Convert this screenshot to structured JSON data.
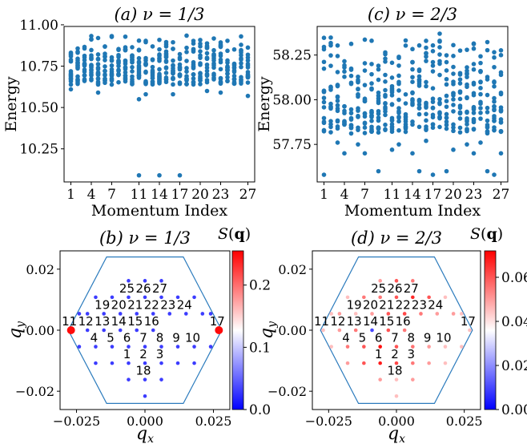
{
  "figure": {
    "colorbar_label": "S(q)"
  },
  "chart_data": [
    {
      "id": "a",
      "type": "scatter",
      "title": "(a) ν = 1/3",
      "xlabel": "Momentum Index",
      "ylabel": "Energy",
      "xlim": [
        0,
        28
      ],
      "ylim": [
        10.05,
        10.99
      ],
      "xticks": [
        1,
        4,
        7,
        11,
        14,
        17,
        20,
        23,
        27
      ],
      "yticks": [
        10.25,
        10.5,
        10.75,
        11.0
      ],
      "ytick_labels": [
        "10.25",
        "10.50",
        "10.75",
        "11.00"
      ],
      "marker_color": "#1f77b4",
      "ground_states": [
        [
          11,
          10.09
        ],
        [
          14,
          10.09
        ],
        [
          17,
          10.09
        ]
      ],
      "band_range": [
        10.55,
        10.95
      ],
      "low_points_shown": [
        [
          1,
          10.61
        ],
        [
          5,
          10.59
        ],
        [
          11,
          10.55
        ],
        [
          12,
          10.58
        ],
        [
          16,
          10.58
        ],
        [
          21,
          10.6
        ],
        [
          23,
          10.59
        ],
        [
          27,
          10.57
        ]
      ]
    },
    {
      "id": "c",
      "type": "scatter",
      "title": "(c) ν = 2/3",
      "xlabel": "Momentum Index",
      "ylabel": "Energy",
      "xlim": [
        0,
        28
      ],
      "ylim": [
        57.54,
        58.41
      ],
      "xticks": [
        1,
        4,
        7,
        11,
        14,
        17,
        20,
        23,
        27
      ],
      "yticks": [
        57.75,
        58.0,
        58.25
      ],
      "ytick_labels": [
        "57.75",
        "58.00",
        "58.25"
      ],
      "marker_color": "#1f77b4",
      "ground_states": [
        [
          1,
          57.58
        ],
        [
          9,
          57.6
        ],
        [
          15,
          57.6
        ],
        [
          17,
          57.58
        ],
        [
          19,
          57.6
        ],
        [
          25,
          57.6
        ],
        [
          26,
          57.58
        ]
      ],
      "band_range": [
        57.65,
        58.38
      ],
      "low_points_shown": [
        [
          4,
          57.7
        ],
        [
          7,
          57.7
        ],
        [
          11,
          57.72
        ],
        [
          14,
          57.7
        ],
        [
          20,
          57.72
        ],
        [
          23,
          57.7
        ],
        [
          27,
          57.7
        ],
        [
          3,
          57.76
        ],
        [
          6,
          57.75
        ],
        [
          12,
          57.75
        ],
        [
          16,
          57.77
        ],
        [
          22,
          57.75
        ],
        [
          24,
          57.76
        ]
      ]
    },
    {
      "id": "b",
      "type": "scatter",
      "title": "(b) ν = 1/3",
      "xlabel": "q_x",
      "ylabel": "q_y",
      "xlim": [
        -0.031,
        0.031
      ],
      "ylim": [
        -0.026,
        0.026
      ],
      "xticks": [
        -0.025,
        0.0,
        0.025
      ],
      "xtick_labels": [
        "−0.025",
        "0.000",
        "0.025"
      ],
      "yticks": [
        -0.02,
        0.0,
        0.02
      ],
      "ytick_labels": [
        "−0.02",
        "0.00",
        "0.02"
      ],
      "colorbar": {
        "min": 0.0,
        "max": 0.255,
        "ticks": [
          0.0,
          0.1,
          0.2
        ],
        "tick_labels": [
          "0.0",
          "0.1",
          "0.2"
        ],
        "label": "S(q)"
      },
      "points": [
        {
          "label": "1",
          "qx": -0.006,
          "qy": -0.0108,
          "S": 0.03
        },
        {
          "label": "2",
          "qx": 0.0,
          "qy": -0.0108,
          "S": 0.03
        },
        {
          "label": "3",
          "qx": 0.006,
          "qy": -0.0108,
          "S": 0.03
        },
        {
          "label": "4",
          "qx": -0.018,
          "qy": -0.0054,
          "S": 0.03
        },
        {
          "label": "5",
          "qx": -0.012,
          "qy": -0.0054,
          "S": 0.03
        },
        {
          "label": "6",
          "qx": -0.006,
          "qy": -0.0054,
          "S": 0.03
        },
        {
          "label": "7",
          "qx": 0.0,
          "qy": -0.0054,
          "S": 0.03
        },
        {
          "label": "8",
          "qx": 0.006,
          "qy": -0.0054,
          "S": 0.03
        },
        {
          "label": "9",
          "qx": 0.012,
          "qy": -0.0054,
          "S": 0.03
        },
        {
          "label": "10",
          "qx": 0.018,
          "qy": -0.0054,
          "S": 0.03
        },
        {
          "label": "11",
          "qx": -0.027,
          "qy": 0.0,
          "S": 0.25
        },
        {
          "label": "12",
          "qx": -0.021,
          "qy": 0.0,
          "S": 0.03
        },
        {
          "label": "13",
          "qx": -0.015,
          "qy": 0.0,
          "S": 0.03
        },
        {
          "label": "14",
          "qx": -0.009,
          "qy": 0.0,
          "S": 0.03
        },
        {
          "label": "15",
          "qx": -0.003,
          "qy": 0.0,
          "S": 0.03
        },
        {
          "label": "16",
          "qx": 0.003,
          "qy": 0.0,
          "S": 0.03
        },
        {
          "label": "17",
          "qx": 0.027,
          "qy": 0.0,
          "S": 0.25
        },
        {
          "label": "18",
          "qx": 0.0,
          "qy": -0.0162,
          "S": 0.03
        },
        {
          "label": "19",
          "qx": -0.015,
          "qy": 0.0054,
          "S": 0.03
        },
        {
          "label": "20",
          "qx": -0.009,
          "qy": 0.0054,
          "S": 0.03
        },
        {
          "label": "21",
          "qx": -0.003,
          "qy": 0.0054,
          "S": 0.03
        },
        {
          "label": "22",
          "qx": 0.003,
          "qy": 0.0054,
          "S": 0.03
        },
        {
          "label": "23",
          "qx": 0.009,
          "qy": 0.0054,
          "S": 0.03
        },
        {
          "label": "24",
          "qx": 0.015,
          "qy": 0.0054,
          "S": 0.03
        },
        {
          "label": "25",
          "qx": -0.006,
          "qy": 0.0108,
          "S": 0.03
        },
        {
          "label": "26",
          "qx": 0.0,
          "qy": 0.0108,
          "S": 0.03
        },
        {
          "label": "27",
          "qx": 0.006,
          "qy": 0.0108,
          "S": 0.03
        }
      ],
      "extra_points": [
        {
          "qx": -0.021,
          "qy": 0.0054,
          "S": 0.03
        },
        {
          "qx": 0.021,
          "qy": 0.0054,
          "S": 0.03
        },
        {
          "qx": -0.012,
          "qy": 0.0108,
          "S": 0.03
        },
        {
          "qx": 0.012,
          "qy": 0.0108,
          "S": 0.03
        },
        {
          "qx": 0.0,
          "qy": 0.0162,
          "S": 0.03
        },
        {
          "qx": -0.006,
          "qy": 0.0162,
          "S": 0.03
        },
        {
          "qx": 0.006,
          "qy": 0.0162,
          "S": 0.03
        },
        {
          "qx": -0.018,
          "qy": 0.0108,
          "S": 0.03
        },
        {
          "qx": 0.018,
          "qy": 0.0108,
          "S": 0.03
        },
        {
          "qx": -0.024,
          "qy": 0.0054,
          "S": 0.03
        },
        {
          "qx": 0.024,
          "qy": 0.0054,
          "S": 0.03
        },
        {
          "qx": -0.024,
          "qy": -0.0054,
          "S": 0.03
        },
        {
          "qx": 0.024,
          "qy": -0.0054,
          "S": 0.03
        },
        {
          "qx": -0.012,
          "qy": -0.0108,
          "S": 0.03
        },
        {
          "qx": 0.012,
          "qy": -0.0108,
          "S": 0.03
        },
        {
          "qx": -0.018,
          "qy": -0.0108,
          "S": 0.03
        },
        {
          "qx": 0.018,
          "qy": -0.0108,
          "S": 0.03
        },
        {
          "qx": -0.006,
          "qy": -0.0162,
          "S": 0.03
        },
        {
          "qx": 0.006,
          "qy": -0.0162,
          "S": 0.03
        },
        {
          "qx": 0.0,
          "qy": -0.0216,
          "S": 0.03
        }
      ],
      "hexagon": [
        [
          -0.014,
          0.024
        ],
        [
          0.014,
          0.024
        ],
        [
          0.028,
          0.0
        ],
        [
          0.014,
          -0.024
        ],
        [
          -0.014,
          -0.024
        ],
        [
          -0.028,
          0.0
        ]
      ]
    },
    {
      "id": "d",
      "type": "scatter",
      "title": "(d) ν = 2/3",
      "xlabel": "q_x",
      "ylabel": "q_y",
      "xlim": [
        -0.031,
        0.031
      ],
      "ylim": [
        -0.026,
        0.026
      ],
      "xticks": [
        -0.025,
        0.0,
        0.025
      ],
      "xtick_labels": [
        "−0.025",
        "0.000",
        "0.025"
      ],
      "yticks": [
        -0.02,
        0.0,
        0.02
      ],
      "ytick_labels": [
        "−0.02",
        "0.00",
        "0.02"
      ],
      "colorbar": {
        "min": 0.0,
        "max": 0.072,
        "ticks": [
          0.0,
          0.02,
          0.04,
          0.06
        ],
        "tick_labels": [
          "0.00",
          "0.02",
          "0.04",
          "0.06"
        ],
        "label": "S(q)"
      },
      "points": [
        {
          "label": "1",
          "qx": -0.006,
          "qy": -0.0108,
          "S": 0.068
        },
        {
          "label": "2",
          "qx": 0.0,
          "qy": -0.0108,
          "S": 0.062
        },
        {
          "label": "3",
          "qx": 0.006,
          "qy": -0.0108,
          "S": 0.055
        },
        {
          "label": "4",
          "qx": -0.018,
          "qy": -0.0054,
          "S": 0.055
        },
        {
          "label": "5",
          "qx": -0.012,
          "qy": -0.0054,
          "S": 0.06
        },
        {
          "label": "6",
          "qx": -0.006,
          "qy": -0.0054,
          "S": 0.07
        },
        {
          "label": "7",
          "qx": 0.0,
          "qy": -0.0054,
          "S": 0.06
        },
        {
          "label": "8",
          "qx": 0.006,
          "qy": -0.0054,
          "S": 0.056
        },
        {
          "label": "9",
          "qx": 0.012,
          "qy": -0.0054,
          "S": 0.05
        },
        {
          "label": "10",
          "qx": 0.018,
          "qy": -0.0054,
          "S": 0.045
        },
        {
          "label": "11",
          "qx": -0.027,
          "qy": 0.0,
          "S": 0.045
        },
        {
          "label": "12",
          "qx": -0.021,
          "qy": 0.0,
          "S": 0.05
        },
        {
          "label": "13",
          "qx": -0.015,
          "qy": 0.0,
          "S": 0.055
        },
        {
          "label": "14",
          "qx": -0.009,
          "qy": 0.0,
          "S": 0.01
        },
        {
          "label": "15",
          "qx": -0.003,
          "qy": 0.0,
          "S": 0.06
        },
        {
          "label": "16",
          "qx": 0.003,
          "qy": 0.0,
          "S": 0.055
        },
        {
          "label": "17",
          "qx": 0.027,
          "qy": 0.0,
          "S": 0.045
        },
        {
          "label": "18",
          "qx": 0.0,
          "qy": -0.0162,
          "S": 0.045
        },
        {
          "label": "19",
          "qx": -0.015,
          "qy": 0.0054,
          "S": 0.045
        },
        {
          "label": "20",
          "qx": -0.009,
          "qy": 0.0054,
          "S": 0.05
        },
        {
          "label": "21",
          "qx": -0.003,
          "qy": 0.0054,
          "S": 0.06
        },
        {
          "label": "22",
          "qx": 0.003,
          "qy": 0.0054,
          "S": 0.062
        },
        {
          "label": "23",
          "qx": 0.009,
          "qy": 0.0054,
          "S": 0.055
        },
        {
          "label": "24",
          "qx": 0.015,
          "qy": 0.0054,
          "S": 0.05
        },
        {
          "label": "25",
          "qx": -0.006,
          "qy": 0.0108,
          "S": 0.055
        },
        {
          "label": "26",
          "qx": 0.0,
          "qy": 0.0108,
          "S": 0.06
        },
        {
          "label": "27",
          "qx": 0.006,
          "qy": 0.0108,
          "S": 0.066
        }
      ],
      "extra_points": [
        {
          "qx": -0.021,
          "qy": 0.0054,
          "S": 0.05
        },
        {
          "qx": 0.021,
          "qy": 0.0054,
          "S": 0.05
        },
        {
          "qx": -0.012,
          "qy": 0.0108,
          "S": 0.055
        },
        {
          "qx": 0.012,
          "qy": 0.0108,
          "S": 0.06
        },
        {
          "qx": 0.0,
          "qy": 0.0162,
          "S": 0.06
        },
        {
          "qx": -0.006,
          "qy": 0.0162,
          "S": 0.05
        },
        {
          "qx": 0.006,
          "qy": 0.0162,
          "S": 0.055
        },
        {
          "qx": -0.018,
          "qy": 0.0108,
          "S": 0.045
        },
        {
          "qx": 0.018,
          "qy": 0.0108,
          "S": 0.045
        },
        {
          "qx": -0.024,
          "qy": 0.0054,
          "S": 0.045
        },
        {
          "qx": 0.024,
          "qy": 0.0054,
          "S": 0.045
        },
        {
          "qx": -0.024,
          "qy": -0.0054,
          "S": 0.045
        },
        {
          "qx": 0.024,
          "qy": -0.0054,
          "S": 0.045
        },
        {
          "qx": -0.012,
          "qy": -0.0108,
          "S": 0.06
        },
        {
          "qx": 0.012,
          "qy": -0.0108,
          "S": 0.05
        },
        {
          "qx": -0.018,
          "qy": -0.0108,
          "S": 0.05
        },
        {
          "qx": 0.018,
          "qy": -0.0108,
          "S": 0.045
        },
        {
          "qx": -0.006,
          "qy": -0.0162,
          "S": 0.05
        },
        {
          "qx": 0.006,
          "qy": -0.0162,
          "S": 0.05
        },
        {
          "qx": 0.0,
          "qy": -0.0216,
          "S": 0.045
        }
      ],
      "hexagon": [
        [
          -0.014,
          0.024
        ],
        [
          0.014,
          0.024
        ],
        [
          0.028,
          0.0
        ],
        [
          0.014,
          -0.024
        ],
        [
          -0.014,
          -0.024
        ],
        [
          -0.028,
          0.0
        ]
      ]
    }
  ]
}
